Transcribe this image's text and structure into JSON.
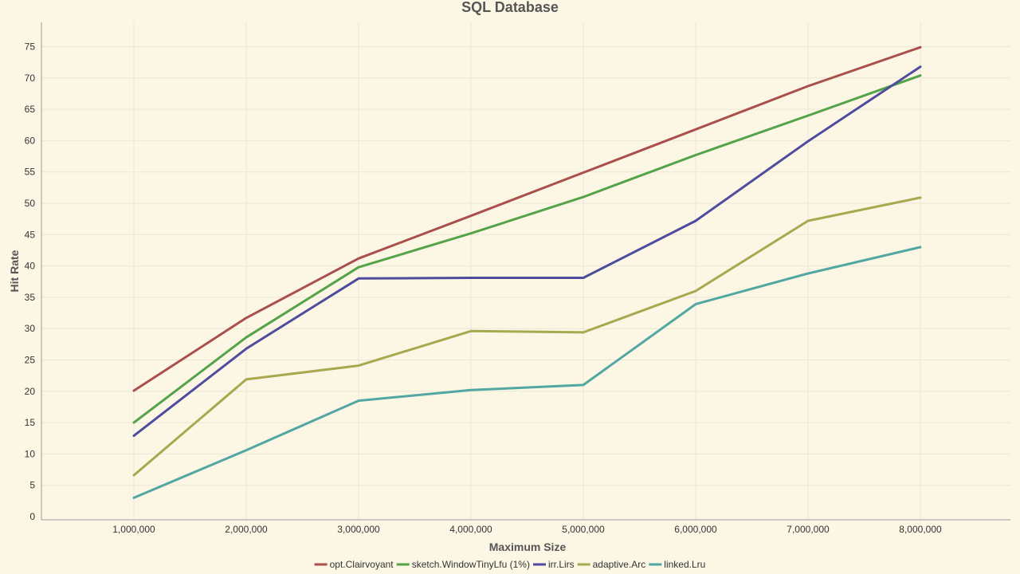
{
  "chart_data": {
    "type": "line",
    "title": "SQL Database",
    "xlabel": "Maximum Size",
    "ylabel": "Hit Rate",
    "x": [
      1000000,
      2000000,
      3000000,
      4000000,
      5000000,
      6000000,
      7000000,
      8000000
    ],
    "x_tick_labels": [
      "1,000,000",
      "2,000,000",
      "3,000,000",
      "4,000,000",
      "5,000,000",
      "6,000,000",
      "7,000,000",
      "8,000,000"
    ],
    "y_ticks": [
      0,
      5,
      10,
      15,
      20,
      25,
      30,
      35,
      40,
      45,
      50,
      55,
      60,
      65,
      70,
      75
    ],
    "ylim": [
      0,
      78
    ],
    "grid": true,
    "legend_position": "bottom-center",
    "series": [
      {
        "name": "opt.Clairvoyant",
        "color": "#a94f4c",
        "values": [
          20.1,
          31.7,
          41.2,
          48.0,
          54.9,
          61.8,
          68.7,
          74.9
        ]
      },
      {
        "name": "sketch.WindowTinyLfu (1%)",
        "color": "#54a348",
        "values": [
          15.0,
          28.6,
          39.8,
          45.2,
          51.0,
          57.7,
          64.0,
          70.4
        ]
      },
      {
        "name": "irr.Lirs",
        "color": "#4f4c9e",
        "values": [
          12.9,
          26.8,
          38.0,
          38.1,
          38.1,
          47.2,
          59.9,
          71.8
        ]
      },
      {
        "name": "adaptive.Arc",
        "color": "#a8a84f",
        "values": [
          6.6,
          21.9,
          24.1,
          29.6,
          29.4,
          36.0,
          47.2,
          50.9
        ]
      },
      {
        "name": "linked.Lru",
        "color": "#52a7a3",
        "values": [
          3.0,
          10.6,
          18.5,
          20.2,
          21.0,
          33.9,
          38.8,
          43.0
        ]
      }
    ]
  }
}
